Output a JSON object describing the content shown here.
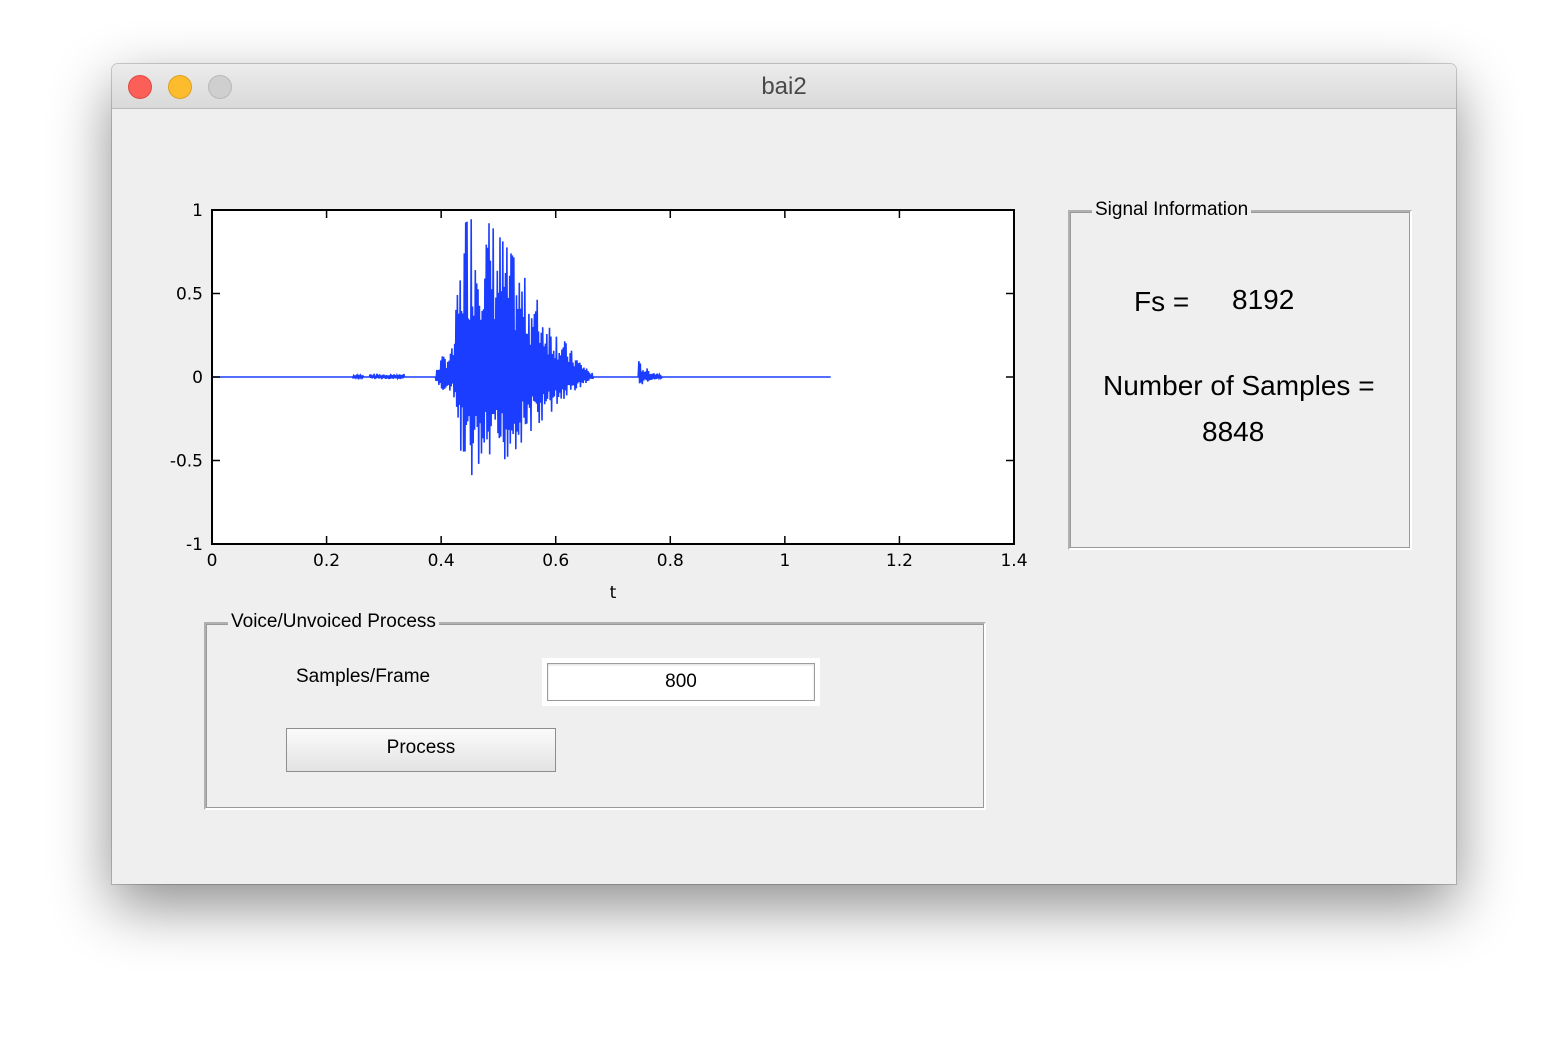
{
  "window": {
    "title": "bai2"
  },
  "signal_info": {
    "title": "Signal Information",
    "fs_label": "Fs =",
    "fs_value": "8192",
    "samples_label": "Number of Samples =",
    "samples_value": "8848"
  },
  "voice_panel": {
    "title": "Voice/Unvoiced Process",
    "frame_label": "Samples/Frame",
    "frame_value": "800",
    "process_label": "Process"
  },
  "chart_data": {
    "type": "line",
    "title": "",
    "xlabel": "t",
    "ylabel": "",
    "xlim": [
      0,
      1.4
    ],
    "ylim": [
      -1,
      1
    ],
    "x_ticks": [
      "0",
      "0.2",
      "0.4",
      "0.6",
      "0.8",
      "1",
      "1.2",
      "1.4"
    ],
    "y_ticks": [
      "1",
      "0.5",
      "0",
      "-0.5",
      "-1"
    ],
    "grid": false,
    "series": [
      {
        "color": "#1a3dff",
        "x_start": 0,
        "x_end": 1.08,
        "segments": [
          {
            "x": [
              0.245,
              0.265
            ],
            "amp": 0.01
          },
          {
            "x": [
              0.275,
              0.335
            ],
            "amp": 0.02
          },
          {
            "x": [
              0.39,
              0.665
            ],
            "envelope": [
              [
                0.39,
                0.05
              ],
              [
                0.4,
                0.12
              ],
              [
                0.42,
                0.18
              ],
              [
                0.44,
                0.92
              ],
              [
                0.47,
                0.98
              ],
              [
                0.5,
                0.85
              ],
              [
                0.53,
                0.7
              ],
              [
                0.56,
                0.5
              ],
              [
                0.6,
                0.3
              ],
              [
                0.63,
                0.15
              ],
              [
                0.665,
                0.02
              ]
            ]
          },
          {
            "x": [
              0.745,
              0.785
            ],
            "envelope": [
              [
                0.745,
                0.1
              ],
              [
                0.755,
                0.06
              ],
              [
                0.785,
                0.01
              ]
            ]
          }
        ]
      }
    ]
  }
}
